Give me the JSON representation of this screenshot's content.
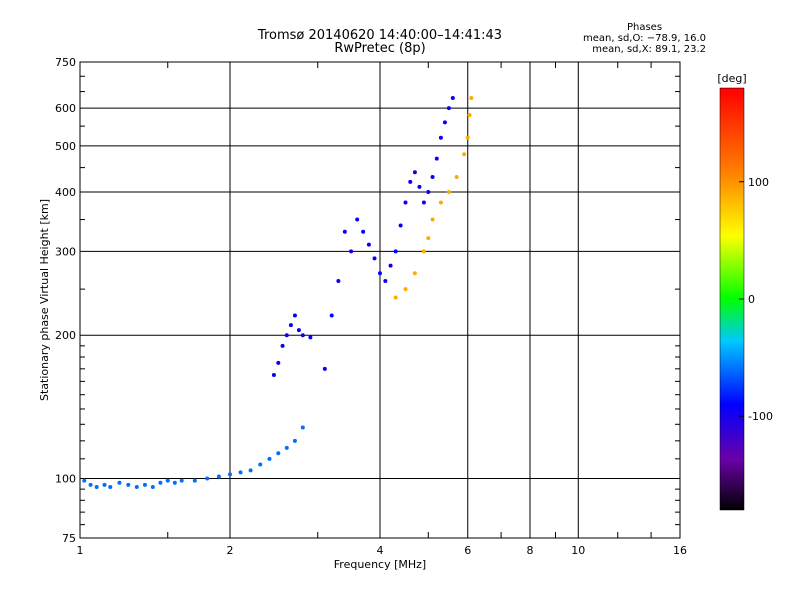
{
  "header": {
    "title_line1": "Tromsø 20140620 14:40:00–14:41:43",
    "title_line2": "RwPretec (8p)"
  },
  "phase_box": {
    "heading": "Phases",
    "line_o": "mean, sd,O: −78.9, 16.0",
    "line_x": "mean, sd,X:  89.1, 23.2"
  },
  "chart_data": {
    "type": "scatter",
    "xlabel": "Frequency [MHz]",
    "ylabel": "Stationary phase Virtual Height [km]",
    "x_scale": "log",
    "y_scale": "log",
    "xlim": [
      1,
      16
    ],
    "ylim": [
      75,
      750
    ],
    "x_ticks": [
      1,
      2,
      4,
      6,
      8,
      10,
      16
    ],
    "x_tick_labels": [
      "1",
      "2",
      "4",
      "6",
      "8",
      "10",
      "16"
    ],
    "y_ticks": [
      75,
      100,
      200,
      300,
      400,
      500,
      600,
      750
    ],
    "y_tick_labels": [
      "75",
      "100",
      "200",
      "300",
      "400",
      "500",
      "600",
      "750"
    ],
    "grid": true,
    "colorbar": {
      "label": "[deg]",
      "range": [
        -180,
        180
      ],
      "ticks": [
        100,
        0,
        -100
      ],
      "tick_labels": [
        "100",
        "0",
        "-100"
      ]
    },
    "series": [
      {
        "color_value": -60,
        "points": [
          [
            1.02,
            99
          ],
          [
            1.05,
            97
          ],
          [
            1.08,
            96
          ],
          [
            1.12,
            97
          ],
          [
            1.15,
            96
          ],
          [
            1.2,
            98
          ],
          [
            1.25,
            97
          ],
          [
            1.3,
            96
          ],
          [
            1.35,
            97
          ],
          [
            1.4,
            96
          ],
          [
            1.45,
            98
          ],
          [
            1.5,
            99
          ],
          [
            1.55,
            98
          ],
          [
            1.6,
            99
          ],
          [
            1.7,
            99
          ],
          [
            1.8,
            100
          ],
          [
            1.9,
            101
          ],
          [
            2.0,
            102
          ],
          [
            2.1,
            103
          ],
          [
            2.2,
            104
          ],
          [
            2.3,
            107
          ],
          [
            2.4,
            110
          ],
          [
            2.5,
            113
          ],
          [
            2.6,
            116
          ],
          [
            2.7,
            120
          ],
          [
            2.8,
            128
          ]
        ]
      },
      {
        "color_value": -95,
        "points": [
          [
            2.45,
            165
          ],
          [
            2.5,
            175
          ],
          [
            2.55,
            190
          ],
          [
            2.6,
            200
          ],
          [
            2.65,
            210
          ],
          [
            2.7,
            220
          ],
          [
            2.75,
            205
          ],
          [
            2.8,
            200
          ],
          [
            2.9,
            198
          ],
          [
            3.1,
            170
          ],
          [
            3.2,
            220
          ],
          [
            3.3,
            260
          ],
          [
            3.4,
            330
          ],
          [
            3.5,
            300
          ],
          [
            3.6,
            350
          ],
          [
            3.7,
            330
          ],
          [
            3.8,
            310
          ],
          [
            3.9,
            290
          ],
          [
            4.0,
            270
          ],
          [
            4.1,
            260
          ],
          [
            4.2,
            280
          ],
          [
            4.3,
            300
          ],
          [
            4.4,
            340
          ],
          [
            4.5,
            380
          ],
          [
            4.6,
            420
          ],
          [
            4.7,
            440
          ],
          [
            4.8,
            410
          ],
          [
            4.9,
            380
          ],
          [
            5.0,
            400
          ],
          [
            5.1,
            430
          ],
          [
            5.2,
            470
          ],
          [
            5.3,
            520
          ],
          [
            5.4,
            560
          ],
          [
            5.5,
            600
          ],
          [
            5.6,
            630
          ]
        ]
      },
      {
        "color_value": 90,
        "points": [
          [
            4.3,
            240
          ],
          [
            4.5,
            250
          ],
          [
            4.7,
            270
          ],
          [
            4.9,
            300
          ],
          [
            5.0,
            320
          ],
          [
            5.1,
            350
          ],
          [
            5.3,
            380
          ],
          [
            5.5,
            400
          ],
          [
            5.7,
            430
          ],
          [
            5.9,
            480
          ],
          [
            6.0,
            520
          ],
          [
            6.05,
            580
          ],
          [
            6.1,
            630
          ]
        ]
      }
    ]
  }
}
